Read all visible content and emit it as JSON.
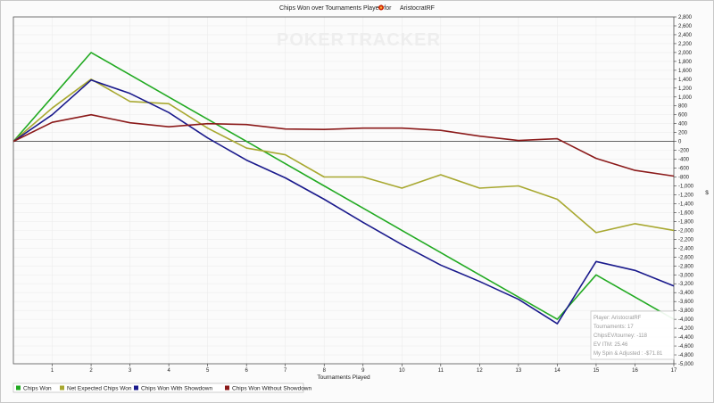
{
  "chart_data": {
    "type": "line",
    "title": "Chips Won over Tournaments Played for",
    "player_name": "AristocratRF",
    "xlabel": "Tournaments Played",
    "ylabel": "$",
    "watermark": {
      "left": "POKER",
      "right": "TRACKER"
    },
    "x": [
      0,
      1,
      2,
      3,
      4,
      5,
      6,
      7,
      8,
      9,
      10,
      11,
      12,
      13,
      14,
      15,
      16,
      17
    ],
    "x_ticks": [
      "1",
      "2",
      "3",
      "4",
      "5",
      "6",
      "7",
      "8",
      "9",
      "10",
      "11",
      "12",
      "13",
      "14",
      "15",
      "16",
      "17"
    ],
    "xlim": [
      0,
      17
    ],
    "ylim": [
      -5000,
      2800
    ],
    "y_ticks": [
      "2,800",
      "2,600",
      "2,400",
      "2,200",
      "2,000",
      "1,800",
      "1,600",
      "1,400",
      "1,200",
      "1,000",
      "800",
      "600",
      "400",
      "200",
      "0",
      "-200",
      "-400",
      "-600",
      "-800",
      "-1,000",
      "-1,200",
      "-1,400",
      "-1,600",
      "-1,800",
      "-2,000",
      "-2,200",
      "-2,400",
      "-2,600",
      "-2,800",
      "-3,000",
      "-3,200",
      "-3,400",
      "-3,600",
      "-3,800",
      "-4,000",
      "-4,200",
      "-4,400",
      "-4,600",
      "-4,800",
      "-5,000"
    ],
    "y_tick_values": [
      2800,
      2600,
      2400,
      2200,
      2000,
      1800,
      1600,
      1400,
      1200,
      1000,
      800,
      600,
      400,
      200,
      0,
      -200,
      -400,
      -600,
      -800,
      -1000,
      -1200,
      -1400,
      -1600,
      -1800,
      -2000,
      -2200,
      -2400,
      -2600,
      -2800,
      -3000,
      -3200,
      -3400,
      -3600,
      -3800,
      -4000,
      -4200,
      -4400,
      -4600,
      -4800,
      -5000
    ],
    "legend_position": "bottom-left",
    "series": [
      {
        "name": "Chips Won",
        "color": "#22aa22",
        "values": [
          0,
          1000,
          2000,
          1500,
          1000,
          500,
          0,
          -500,
          -1000,
          -1500,
          -2000,
          -2500,
          -3000,
          -3500,
          -4000,
          -3000,
          -3500,
          -4000
        ]
      },
      {
        "name": "Net Expected Chips Won",
        "color": "#a8a830",
        "values": [
          0,
          750,
          1400,
          900,
          850,
          300,
          -150,
          -300,
          -800,
          -800,
          -1050,
          -750,
          -1050,
          -1000,
          -1300,
          -2050,
          -1850,
          -2000
        ]
      },
      {
        "name": "Chips Won With Showdown",
        "color": "#1a1a8c",
        "values": [
          0,
          600,
          1380,
          1080,
          650,
          80,
          -420,
          -820,
          -1300,
          -1820,
          -2320,
          -2780,
          -3150,
          -3550,
          -4100,
          -2700,
          -2900,
          -3250
        ]
      },
      {
        "name": "Chips Won Without Showdown",
        "color": "#8b1a1a",
        "values": [
          0,
          430,
          600,
          420,
          330,
          400,
          380,
          280,
          270,
          300,
          300,
          250,
          120,
          20,
          60,
          -380,
          -650,
          -780
        ]
      }
    ],
    "tooltip": {
      "lines": [
        "Player: AristocratRF",
        "Tournaments: 17",
        "ChipsEV/tourney: -118",
        "EV ITM: 25.46",
        "My Spin & Adjusted : -$71.81"
      ]
    }
  }
}
